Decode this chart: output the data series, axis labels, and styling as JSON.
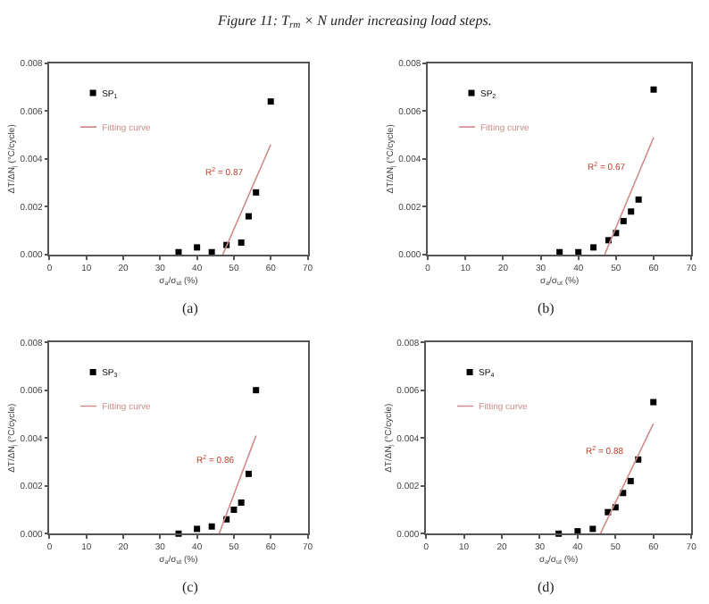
{
  "chart_data": [
    {
      "type": "scatter",
      "title": "Figure 11: T$_{rm}$ × N under increasing load steps.",
      "xlabel": "σ$_{a}$/σ$_{ut}$ (%)",
      "ylabel": "ΔT/ΔN$_{j}$ (°C/cycle)",
      "xlim": [
        0,
        70
      ],
      "xticks": [
        0,
        10,
        20,
        30,
        40,
        50,
        60,
        70
      ],
      "ylim": [
        0,
        0.008
      ],
      "yticks": [
        {
          "value": 0,
          "label": "0.000"
        },
        {
          "value": 0.002,
          "label": "0.002"
        },
        {
          "value": 0.004,
          "label": "0.004"
        },
        {
          "value": 0.006,
          "label": "0.006"
        },
        {
          "value": 0.008,
          "label": "0.008"
        }
      ],
      "grid": false,
      "legend": "top left",
      "series": [
        {
          "name": "SP$_{1}$",
          "marker": "square",
          "color": "#000000",
          "x": [
            35,
            40,
            44,
            48,
            52,
            54,
            56,
            60
          ],
          "values": [
            0.0001,
            0.0003,
            0.0001,
            0.0004,
            0.0005,
            0.0016,
            0.0026,
            0.0064
          ]
        },
        {
          "name": "Fitting curve",
          "type": "line",
          "color": "#d08a8a",
          "x": [
            47,
            60
          ],
          "values": [
            0,
            0.0046
          ]
        }
      ],
      "annotations": [
        "R$^{2}$ = 0.87",
        "(a)"
      ]
    },
    {
      "type": "scatter",
      "xlabel": "σ$_{a}$/σ$_{ut}$ (%)",
      "ylabel": "ΔT/ΔN$_{j}$ (°C/cycle)",
      "xlim": [
        0,
        70
      ],
      "xticks": [
        0,
        10,
        20,
        30,
        40,
        50,
        60,
        70
      ],
      "ylim": [
        0,
        0.008
      ],
      "yticks": [
        {
          "value": 0,
          "label": "0.000"
        },
        {
          "value": 0.002,
          "label": "0.002"
        },
        {
          "value": 0.004,
          "label": "0.004"
        },
        {
          "value": 0.006,
          "label": "0.006"
        },
        {
          "value": 0.008,
          "label": "0.008"
        }
      ],
      "grid": false,
      "legend": "top left",
      "series": [
        {
          "name": "SP$_{2}$",
          "marker": "square",
          "color": "#000000",
          "x": [
            35,
            40,
            44,
            48,
            50,
            52,
            54,
            56,
            60
          ],
          "values": [
            0.0001,
            0.0001,
            0.0003,
            0.0006,
            0.0009,
            0.0014,
            0.0018,
            0.0023,
            0.0069
          ]
        },
        {
          "name": "Fitting curve",
          "type": "line",
          "color": "#d08a8a",
          "x": [
            47,
            60
          ],
          "values": [
            0,
            0.0049
          ]
        }
      ],
      "annotations": [
        "R$^{2}$ = 0.67",
        "(b)"
      ]
    },
    {
      "type": "scatter",
      "xlabel": "σ$_{a}$/σ$_{ut}$ (%)",
      "ylabel": "ΔT/ΔN$_{j}$ (°C/cycle)",
      "xlim": [
        0,
        70
      ],
      "xticks": [
        0,
        10,
        20,
        30,
        40,
        50,
        60,
        70
      ],
      "ylim": [
        0,
        0.008
      ],
      "yticks": [
        {
          "value": 0,
          "label": "0.000"
        },
        {
          "value": 0.002,
          "label": "0.002"
        },
        {
          "value": 0.004,
          "label": "0.004"
        },
        {
          "value": 0.006,
          "label": "0.006"
        },
        {
          "value": 0.008,
          "label": "0.008"
        }
      ],
      "grid": false,
      "legend": "top left",
      "series": [
        {
          "name": "SP$_{3}$",
          "marker": "square",
          "color": "#000000",
          "x": [
            35,
            40,
            44,
            48,
            50,
            52,
            54,
            56
          ],
          "values": [
            0.0,
            0.0002,
            0.0003,
            0.0006,
            0.001,
            0.0013,
            0.0025,
            0.006
          ]
        },
        {
          "name": "Fitting curve",
          "type": "line",
          "color": "#d08a8a",
          "x": [
            46,
            56
          ],
          "values": [
            0,
            0.0041
          ]
        }
      ],
      "annotations": [
        "R$^{2}$ = 0.86",
        "(c)"
      ]
    },
    {
      "type": "scatter",
      "xlabel": "σ$_{a}$/σ$_{ut}$ (%)",
      "ylabel": "ΔT/ΔN$_{j}$ (°C/cycle)",
      "xlim": [
        0,
        70
      ],
      "xticks": [
        0,
        10,
        20,
        30,
        40,
        50,
        60,
        70
      ],
      "ylim": [
        0,
        0.008
      ],
      "yticks": [
        {
          "value": 0,
          "label": "0.000"
        },
        {
          "value": 0.002,
          "label": "0.002"
        },
        {
          "value": 0.004,
          "label": "0.004"
        },
        {
          "value": 0.006,
          "label": "0.006"
        },
        {
          "value": 0.008,
          "label": "0.008"
        }
      ],
      "grid": false,
      "legend": "top left",
      "series": [
        {
          "name": "SP$_{4}$",
          "marker": "square",
          "color": "#000000",
          "x": [
            35,
            40,
            44,
            48,
            50,
            52,
            54,
            56,
            60
          ],
          "values": [
            0.0,
            0.0001,
            0.0002,
            0.0009,
            0.0011,
            0.0017,
            0.0022,
            0.0031,
            0.0055
          ]
        },
        {
          "name": "Fitting curve",
          "type": "line",
          "color": "#d08a8a",
          "x": [
            46,
            60
          ],
          "values": [
            0,
            0.0046
          ]
        }
      ],
      "annotations": [
        "R$^{2}$ = 0.88",
        "(d)"
      ]
    }
  ]
}
